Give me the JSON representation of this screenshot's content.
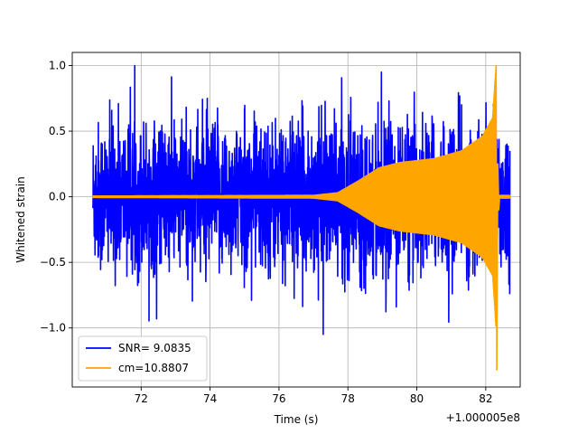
{
  "chart_data": {
    "type": "line",
    "xlabel": "Time (s)",
    "ylabel": "Whitened strain",
    "x_offset_label": "+1.000005e8",
    "xlim": [
      70.0,
      83.0
    ],
    "ylim": [
      -1.45,
      1.1
    ],
    "x_ticks": [
      72,
      74,
      76,
      78,
      80,
      82
    ],
    "x_tick_labels": [
      "72",
      "74",
      "76",
      "78",
      "80",
      "82"
    ],
    "y_ticks": [
      -1.0,
      -0.5,
      0.0,
      0.5,
      1.0
    ],
    "y_tick_labels": [
      "−1.0",
      "−0.5",
      "0.0",
      "0.5",
      "1.0"
    ],
    "grid": true,
    "legend_position": "lower-left",
    "series": [
      {
        "name": "SNR= 9.0835",
        "color": "#0000ff",
        "kind": "noise",
        "x_start": 70.6,
        "x_end": 82.7,
        "typical_amplitude": 0.45,
        "max": 1.0,
        "min": -1.1
      },
      {
        "name": "cm=10.8807",
        "color": "#ffa500",
        "kind": "chirp",
        "x_start": 70.6,
        "x_end": 82.7,
        "envelope": [
          [
            70.6,
            0.005
          ],
          [
            77.0,
            0.01
          ],
          [
            77.7,
            0.03
          ],
          [
            78.3,
            0.12
          ],
          [
            78.9,
            0.22
          ],
          [
            79.5,
            0.26
          ],
          [
            80.5,
            0.29
          ],
          [
            81.3,
            0.35
          ],
          [
            81.9,
            0.46
          ],
          [
            82.2,
            0.6
          ],
          [
            82.3,
            1.0
          ]
        ],
        "peak_max": 1.0,
        "peak_min": -1.32,
        "peak_time": 82.3
      }
    ]
  }
}
